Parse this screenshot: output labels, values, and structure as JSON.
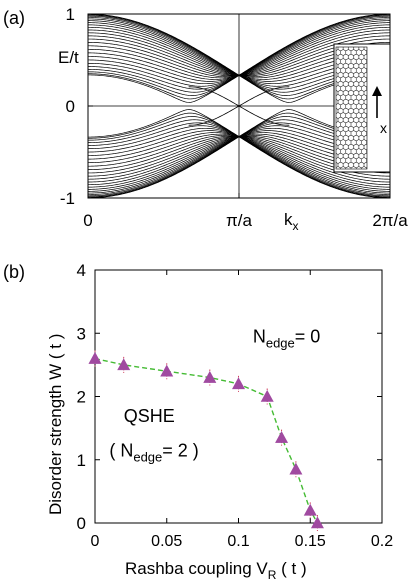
{
  "chart_data": [
    {
      "type": "line",
      "panel_label": "(a)",
      "ylabel": "E/t",
      "xlabel": "k",
      "xlabel_sub": "x",
      "xlim": [
        0,
        6.2832
      ],
      "ylim": [
        -1,
        1
      ],
      "x_ticks": [
        {
          "value": 0,
          "label": "0"
        },
        {
          "value": 3.1416,
          "label": "π/a"
        },
        {
          "value": 6.2832,
          "label": "2π/a"
        }
      ],
      "y_ticks": [
        {
          "value": 1,
          "label": "1"
        },
        {
          "value": 0,
          "label": "0"
        },
        {
          "value": -1,
          "label": "-1"
        }
      ],
      "zero_line": 0,
      "band_count": 26,
      "edge_states_cross_at": 3.1416,
      "inset": {
        "arrow_label": "x",
        "content": "zigzag honeycomb ribbon"
      }
    },
    {
      "type": "line",
      "panel_label": "(b)",
      "xlabel": "Rashba coupling  V",
      "xlabel_sub": "R",
      "xlabel_unit": " ( t )",
      "ylabel": "Disorder strength  W ( t )",
      "xlim": [
        0,
        0.2
      ],
      "ylim": [
        0,
        4
      ],
      "x_ticks": [
        {
          "value": 0,
          "label": "0"
        },
        {
          "value": 0.05,
          "label": "0.05"
        },
        {
          "value": 0.1,
          "label": "0.1"
        },
        {
          "value": 0.15,
          "label": "0.15"
        },
        {
          "value": 0.2,
          "label": "0.2"
        }
      ],
      "y_ticks": [
        {
          "value": 0,
          "label": "0"
        },
        {
          "value": 1,
          "label": "1"
        },
        {
          "value": 2,
          "label": "2"
        },
        {
          "value": 3,
          "label": "3"
        },
        {
          "value": 4,
          "label": "4"
        }
      ],
      "series": [
        {
          "x": [
            0,
            0.02,
            0.05,
            0.08,
            0.1,
            0.12,
            0.13,
            0.14,
            0.15,
            0.155
          ],
          "y": [
            2.6,
            2.5,
            2.4,
            2.3,
            2.2,
            2.0,
            1.35,
            0.85,
            0.2,
            0.0
          ],
          "marker_color": "#a04aa0",
          "line_color": "#44bb33"
        }
      ],
      "annotations": [
        {
          "text": "N",
          "sub": "edge",
          "rest": "= 0",
          "x": 0.11,
          "y": 2.85
        },
        {
          "text": "QSHE",
          "x": 0.02,
          "y": 1.6
        },
        {
          "text": "( N",
          "sub": "edge",
          "rest": "= 2 )",
          "x": 0.01,
          "y": 1.05
        }
      ]
    }
  ]
}
